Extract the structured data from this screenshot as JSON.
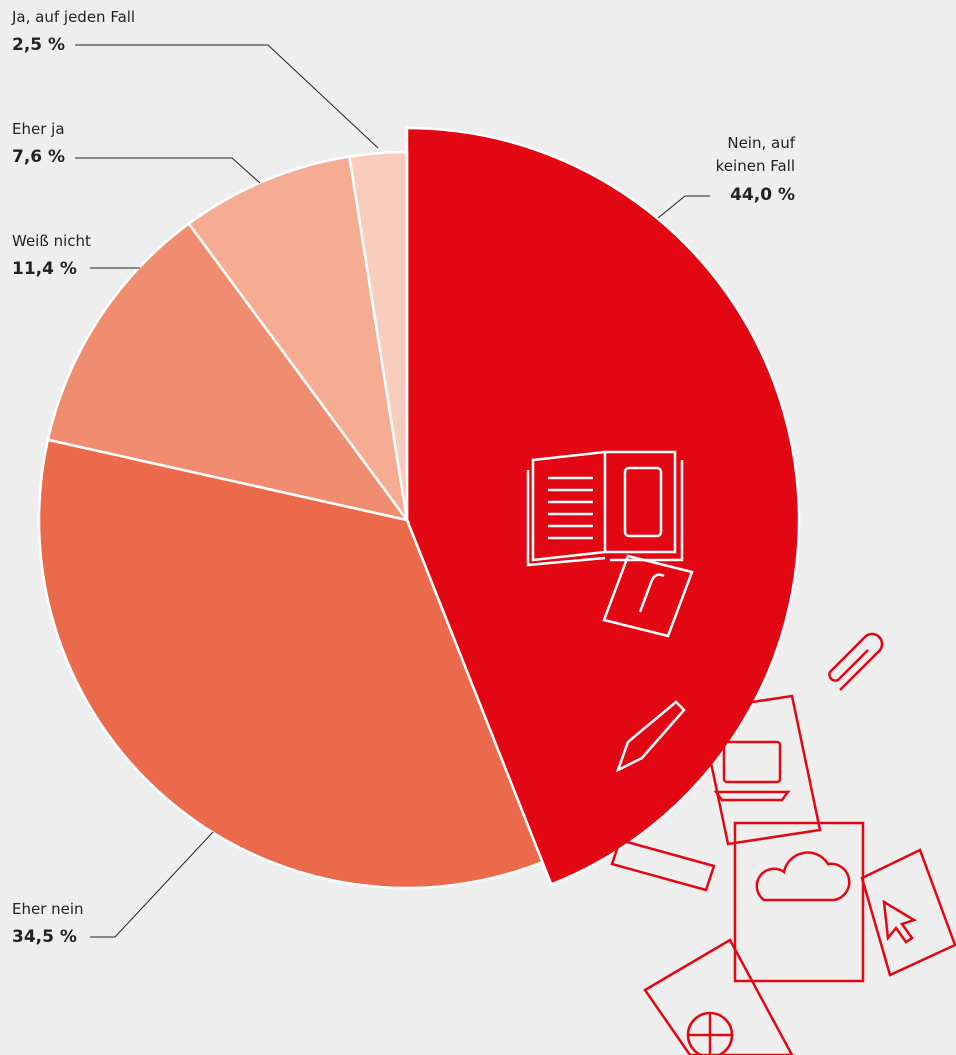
{
  "chart_data": {
    "type": "pie",
    "categories": [
      "Nein, auf keinen Fall",
      "Eher nein",
      "Weiß nicht",
      "Eher ja",
      "Ja, auf jeden Fall"
    ],
    "values": [
      44.0,
      34.5,
      11.4,
      7.6,
      2.5
    ],
    "value_labels": [
      "44,0 %",
      "34,5 %",
      "11,4 %",
      "7,6 %",
      "2,5 %"
    ],
    "colors": [
      "#e30613",
      "#ec6a4c",
      "#f08d70",
      "#f5ac93",
      "#f8cdbd"
    ]
  }
}
